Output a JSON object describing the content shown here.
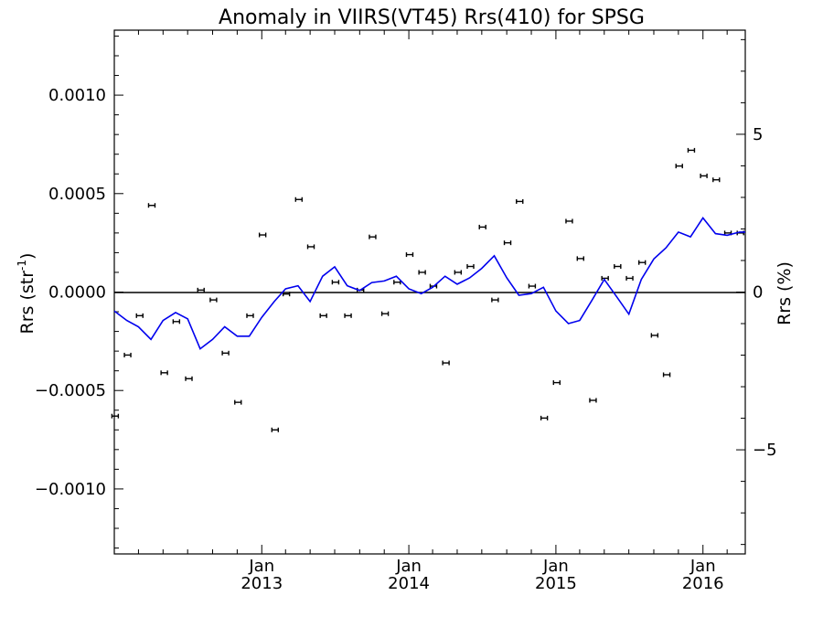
{
  "chart_data": {
    "type": "line",
    "title": "Anomaly in VIIRS(VT45) Rrs(410) for SPSG",
    "ylabel_left": "Rrs (str",
    "ylabel_left_sup": "-1",
    "ylabel_left_close": ")",
    "ylabel_right": "Rrs (%)",
    "xlim": [
      "2012-01-01",
      "2016-04-15"
    ],
    "ylim_left": [
      -0.00133,
      0.00133
    ],
    "ylim_right": [
      -8.3,
      8.3
    ],
    "y_ticks_left": [
      {
        "value": 0.001,
        "label": "0.0010"
      },
      {
        "value": 0.0005,
        "label": "0.0005"
      },
      {
        "value": 0.0,
        "label": "0.0000"
      },
      {
        "value": -0.0005,
        "label": "−0.0005"
      },
      {
        "value": -0.001,
        "label": "−0.0010"
      }
    ],
    "y_ticks_right": [
      {
        "value": 5,
        "label": "5"
      },
      {
        "value": 0,
        "label": "0"
      },
      {
        "value": -5,
        "label": "−5"
      }
    ],
    "x_ticks": [
      {
        "date": "2013-01-01",
        "line1": "Jan",
        "line2": "2013"
      },
      {
        "date": "2014-01-01",
        "line1": "Jan",
        "line2": "2014"
      },
      {
        "date": "2015-01-01",
        "line1": "Jan",
        "line2": "2015"
      },
      {
        "date": "2016-01-01",
        "line1": "Jan",
        "line2": "2016"
      }
    ],
    "zero_line": true,
    "series": [
      {
        "type": "errorbar_points",
        "axis": "left",
        "color": "#000000",
        "x": [
          "2012-01-03",
          "2012-02-03",
          "2012-03-04",
          "2012-04-03",
          "2012-05-04",
          "2012-06-03",
          "2012-07-04",
          "2012-08-03",
          "2012-09-03",
          "2012-10-03",
          "2012-11-03",
          "2012-12-03",
          "2013-01-03",
          "2013-02-03",
          "2013-03-03",
          "2013-04-03",
          "2013-05-03",
          "2013-06-03",
          "2013-07-03",
          "2013-08-03",
          "2013-09-03",
          "2013-10-03",
          "2013-11-03",
          "2013-12-03",
          "2014-01-03",
          "2014-02-03",
          "2014-03-03",
          "2014-04-03",
          "2014-05-03",
          "2014-06-03",
          "2014-07-03",
          "2014-08-03",
          "2014-09-03",
          "2014-10-03",
          "2014-11-03",
          "2014-12-03",
          "2015-01-03",
          "2015-02-03",
          "2015-03-03",
          "2015-04-03",
          "2015-05-03",
          "2015-06-03",
          "2015-07-03",
          "2015-08-03",
          "2015-09-03",
          "2015-10-03",
          "2015-11-03",
          "2015-12-03",
          "2016-01-03",
          "2016-02-03",
          "2016-03-03",
          "2016-04-03"
        ],
        "y": [
          -0.00063,
          -0.00032,
          -0.00012,
          0.00044,
          -0.00041,
          -0.00015,
          -0.00044,
          1e-05,
          -4e-05,
          -0.00031,
          -0.00056,
          -0.00012,
          0.00029,
          -0.0007,
          -1e-05,
          0.00047,
          0.00023,
          -0.00012,
          5e-05,
          -0.00012,
          1e-05,
          0.00028,
          -0.00011,
          5e-05,
          0.00019,
          0.0001,
          3e-05,
          -0.00036,
          0.0001,
          0.00013,
          0.00033,
          -4e-05,
          0.00025,
          0.00046,
          3e-05,
          -0.00064,
          -0.00046,
          0.00036,
          0.00017,
          -0.00055,
          7e-05,
          0.00013,
          7e-05,
          0.00015,
          -0.00022,
          -0.00042,
          0.00064,
          0.00072,
          0.00059,
          0.00057,
          0.0003,
          0.0003
        ]
      },
      {
        "type": "line",
        "axis": "right",
        "color": "#0000ee",
        "x": [
          "2012-01-01",
          "2012-02-01",
          "2012-03-01",
          "2012-04-01",
          "2012-05-01",
          "2012-06-01",
          "2012-07-01",
          "2012-08-01",
          "2012-09-01",
          "2012-10-01",
          "2012-11-01",
          "2012-12-01",
          "2013-01-01",
          "2013-02-01",
          "2013-03-01",
          "2013-04-01",
          "2013-05-01",
          "2013-06-01",
          "2013-07-01",
          "2013-08-01",
          "2013-09-01",
          "2013-10-01",
          "2013-11-01",
          "2013-12-01",
          "2014-01-01",
          "2014-02-01",
          "2014-03-01",
          "2014-04-01",
          "2014-05-01",
          "2014-06-01",
          "2014-07-01",
          "2014-08-01",
          "2014-09-01",
          "2014-10-01",
          "2014-11-01",
          "2014-12-01",
          "2015-01-01",
          "2015-02-01",
          "2015-03-01",
          "2015-04-01",
          "2015-05-01",
          "2015-06-01",
          "2015-07-01",
          "2015-08-01",
          "2015-09-01",
          "2015-10-01",
          "2015-11-01",
          "2015-12-01",
          "2016-01-01",
          "2016-02-01",
          "2016-03-01",
          "2016-04-01",
          "2016-04-15"
        ],
        "y": [
          -0.6,
          -0.9,
          -1.1,
          -1.5,
          -0.9,
          -0.65,
          -0.85,
          -1.8,
          -1.5,
          -1.1,
          -1.4,
          -1.4,
          -0.8,
          -0.3,
          0.1,
          0.2,
          -0.3,
          0.5,
          0.8,
          0.2,
          0.05,
          0.3,
          0.35,
          0.5,
          0.1,
          -0.05,
          0.15,
          0.5,
          0.25,
          0.45,
          0.75,
          1.15,
          0.45,
          -0.1,
          -0.05,
          0.15,
          -0.6,
          -1.0,
          -0.9,
          -0.25,
          0.4,
          -0.15,
          -0.7,
          0.4,
          1.05,
          1.4,
          1.9,
          1.75,
          2.35,
          1.85,
          1.8,
          1.9,
          1.9
        ]
      }
    ]
  }
}
